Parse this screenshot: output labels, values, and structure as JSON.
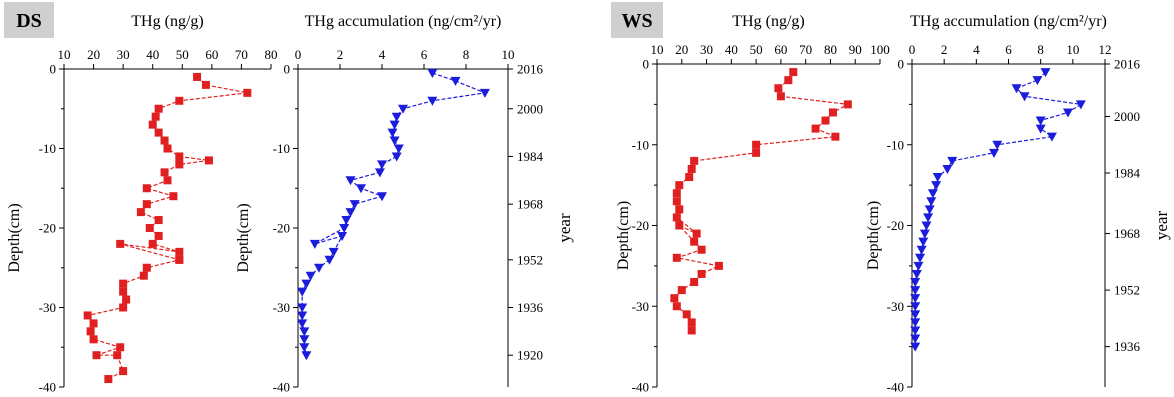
{
  "chart_data": [
    {
      "site": "DS",
      "type": "line",
      "title": "THg (ng/g)",
      "ylabel": "Depth(cm)",
      "xlim": [
        10,
        80
      ],
      "ylim": [
        -40,
        0
      ],
      "xticks": [
        "10",
        "20",
        "30",
        "40",
        "50",
        "60",
        "70",
        "80"
      ],
      "yticks": [
        "0",
        "-10",
        "-20",
        "-30",
        "-40"
      ],
      "marker": "square",
      "color": "#e02020",
      "series": [
        {
          "x": [
            55,
            58,
            72,
            49,
            42,
            41,
            40,
            42,
            44,
            45,
            49,
            59,
            49,
            44,
            45,
            38,
            47,
            38,
            36,
            42,
            39,
            42,
            40,
            49,
            29,
            49,
            49,
            38,
            37,
            30,
            30,
            31,
            30,
            18,
            20,
            19,
            20,
            29,
            21,
            28,
            30,
            25
          ],
          "y": [
            -1,
            -2,
            -3,
            -4,
            -5,
            -6,
            -7,
            -8,
            -9,
            -10,
            -11,
            -11.5,
            -12,
            -13,
            -14,
            -15,
            -16,
            -17,
            -18,
            -19,
            -20,
            -21,
            -22,
            -23,
            -22,
            -24,
            -24,
            -25,
            -26,
            -27,
            -28,
            -29,
            -30,
            -31,
            -32,
            -33,
            -34,
            -35,
            -36,
            -36,
            -38,
            -39
          ]
        }
      ]
    },
    {
      "site": "DS",
      "type": "line",
      "title": "THg accumulation (ng/cm²/yr)",
      "ylabel": "Depth(cm)",
      "y2label": "year",
      "xlim": [
        0,
        10
      ],
      "ylim": [
        -40,
        0
      ],
      "xticks": [
        "0",
        "2",
        "4",
        "6",
        "8",
        "10"
      ],
      "yticks": [
        "0",
        "-10",
        "-20",
        "-30",
        "-40"
      ],
      "year_ticks": [
        {
          "label": "2016",
          "depth": 0
        },
        {
          "label": "2000",
          "depth": -5
        },
        {
          "label": "1984",
          "depth": -11
        },
        {
          "label": "1968",
          "depth": -17
        },
        {
          "label": "1952",
          "depth": -24
        },
        {
          "label": "1936",
          "depth": -30
        },
        {
          "label": "1920",
          "depth": -36
        }
      ],
      "marker": "triangle-down",
      "color": "#1c1cdc",
      "series": [
        {
          "x": [
            6.4,
            7.5,
            8.9,
            6.4,
            5.0,
            4.7,
            4.6,
            4.5,
            4.6,
            4.8,
            4.7,
            4.0,
            3.9,
            2.5,
            3.0,
            4.0,
            2.7,
            2.5,
            2.3,
            2.2,
            0.8,
            2.1,
            1.7,
            1.5,
            1.0,
            0.6,
            0.4,
            0.2,
            0.2,
            0.2,
            0.2,
            0.3,
            0.3,
            0.3,
            0.4
          ],
          "y": [
            -0.5,
            -1.5,
            -3,
            -4,
            -5,
            -6,
            -7,
            -8,
            -9,
            -10,
            -11,
            -12,
            -13,
            -14,
            -15,
            -16,
            -17,
            -18,
            -19,
            -20,
            -22,
            -21,
            -23,
            -24,
            -25,
            -26,
            -27,
            -28,
            -30,
            -31,
            -32,
            -33,
            -34,
            -35,
            -36
          ]
        }
      ]
    },
    {
      "site": "WS",
      "type": "line",
      "title": "THg (ng/g)",
      "ylabel": "Depth(cm)",
      "xlim": [
        10,
        100
      ],
      "ylim": [
        -40,
        0
      ],
      "xticks": [
        "10",
        "20",
        "30",
        "40",
        "50",
        "60",
        "70",
        "80",
        "90",
        "100"
      ],
      "yticks": [
        "0",
        "-10",
        "-20",
        "-30",
        "-40"
      ],
      "marker": "square",
      "color": "#e02020",
      "series": [
        {
          "x": [
            65,
            63,
            59,
            60,
            87,
            81,
            78,
            74,
            82,
            50,
            50,
            25,
            24,
            23,
            19,
            18,
            18,
            19,
            18,
            26,
            19,
            25,
            28,
            18,
            35,
            28,
            25,
            20,
            17,
            18,
            22,
            24,
            24
          ],
          "y": [
            -1,
            -2,
            -3,
            -4,
            -5,
            -6,
            -7,
            -8,
            -9,
            -10,
            -11,
            -12,
            -13,
            -14,
            -15,
            -16,
            -17,
            -18,
            -19,
            -21,
            -20,
            -22,
            -23,
            -24,
            -25,
            -26,
            -27,
            -28,
            -29,
            -30,
            -31,
            -32,
            -33
          ]
        }
      ]
    },
    {
      "site": "WS",
      "type": "line",
      "title": "THg accumulation (ng/cm²/yr)",
      "ylabel": "Depth(cm)",
      "y2label": "year",
      "xlim": [
        0,
        12
      ],
      "ylim": [
        -40,
        0
      ],
      "xticks": [
        "0",
        "2",
        "4",
        "6",
        "8",
        "10",
        "12"
      ],
      "yticks": [
        "0",
        "-10",
        "-20",
        "-30",
        "-40"
      ],
      "year_ticks": [
        {
          "label": "2016",
          "depth": 0
        },
        {
          "label": "2000",
          "depth": -6.5
        },
        {
          "label": "1984",
          "depth": -13.5
        },
        {
          "label": "1968",
          "depth": -21
        },
        {
          "label": "1952",
          "depth": -28
        },
        {
          "label": "1936",
          "depth": -35
        }
      ],
      "marker": "triangle-down",
      "color": "#1c1cdc",
      "series": [
        {
          "x": [
            8.3,
            7.8,
            6.5,
            7.0,
            10.5,
            9.7,
            8.0,
            8.0,
            8.7,
            5.3,
            5.1,
            2.5,
            2.2,
            1.6,
            1.5,
            1.3,
            1.2,
            1.1,
            1.0,
            0.9,
            0.8,
            0.7,
            0.6,
            0.5,
            0.4,
            0.3,
            0.2,
            0.2,
            0.2,
            0.2,
            0.2,
            0.2,
            0.2,
            0.2,
            0.2
          ],
          "y": [
            -1,
            -2,
            -3,
            -4,
            -5,
            -6,
            -7,
            -8,
            -9,
            -10,
            -11,
            -12,
            -13,
            -14,
            -15,
            -16,
            -17,
            -18,
            -19,
            -20,
            -21,
            -22,
            -23,
            -24,
            -25,
            -26,
            -27,
            -28,
            -29,
            -30,
            -31,
            -32,
            -33,
            -34,
            -35
          ]
        }
      ]
    }
  ],
  "site_labels": [
    "DS",
    "WS"
  ]
}
